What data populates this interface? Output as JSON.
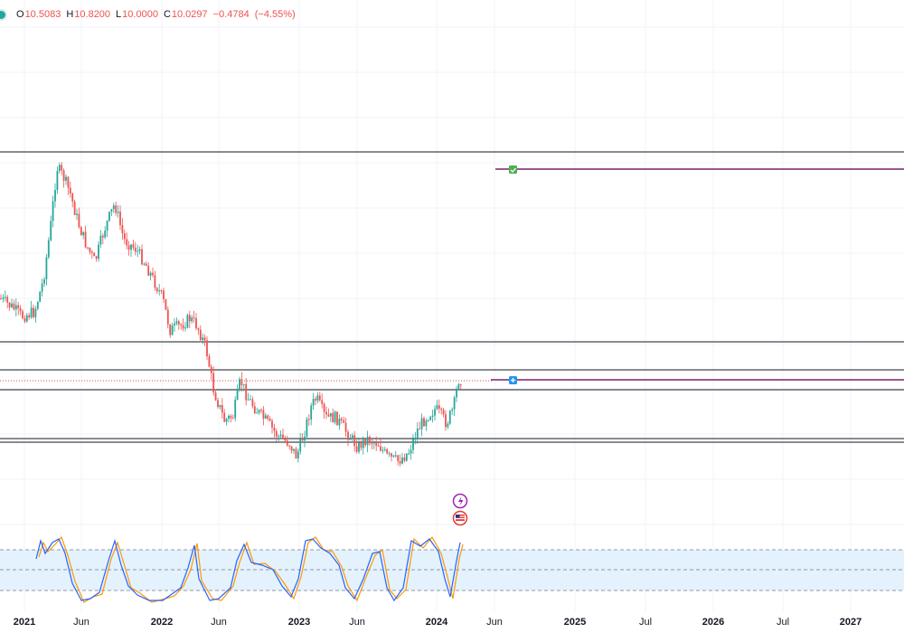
{
  "legend": {
    "open_label": "O",
    "open": "10.5083",
    "high_label": "H",
    "high": "10.8200",
    "low_label": "L",
    "low": "10.0000",
    "close_label": "C",
    "close": "10.0297",
    "change": "−0.4784",
    "change_pct": "(−4.55%)"
  },
  "time_axis": {
    "ticks": [
      "2021",
      "Jun",
      "2022",
      "Jun",
      "2023",
      "Jun",
      "2024",
      "Jun",
      "2025",
      "Jul",
      "2026",
      "Jul",
      "2027"
    ]
  },
  "icons": {
    "target_marker": "check-icon",
    "entry_marker": "plus-icon",
    "event_1": "lightning-icon",
    "event_2": "us-flag-icon"
  },
  "colors": {
    "up": "#26a69a",
    "down": "#ef5350",
    "level_line": "#131722",
    "projection_line": "#7b1f6a",
    "price_line": "#d84b5a",
    "stoch_k": "#2962ff",
    "stoch_d": "#ff9800",
    "oscillator_band": "#e3f2fd"
  },
  "chart_data": {
    "type": "candlestick",
    "last_bar": {
      "open": 10.5083,
      "high": 10.82,
      "low": 10.0,
      "close": 10.0297
    },
    "x_range": [
      "2021",
      "2027"
    ],
    "grid": true,
    "horizontal_levels": 6,
    "oscillator": {
      "type": "stochastic",
      "series": [
        "K",
        "D"
      ],
      "band": [
        20,
        80
      ]
    }
  }
}
